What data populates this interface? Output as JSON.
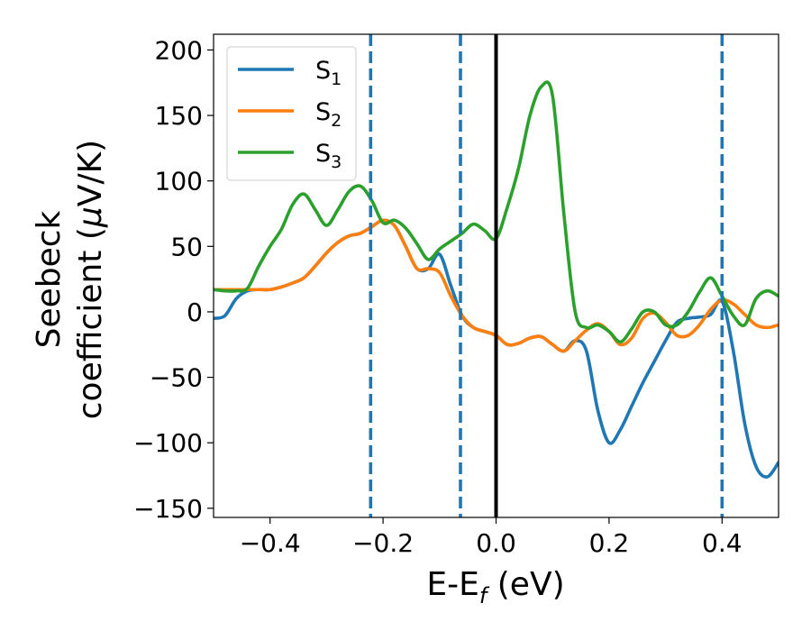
{
  "chart_data": {
    "type": "line",
    "xlabel": "E-E",
    "xlabel_sub": "f",
    "xlabel_suffix": " (eV)",
    "ylabel_line1": "Seebeck",
    "ylabel_line2": "coefficient  (",
    "ylabel_mu": "μ",
    "ylabel_line2_end": "V/K)",
    "xlim": [
      -0.5,
      0.5
    ],
    "ylim": [
      -157,
      212
    ],
    "xticks": [
      -0.4,
      -0.2,
      0.0,
      0.2,
      0.4
    ],
    "xtick_labels": [
      "−0.4",
      "−0.2",
      "0.0",
      "0.2",
      "0.4"
    ],
    "yticks": [
      -150,
      -100,
      -50,
      0,
      50,
      100,
      150,
      200
    ],
    "ytick_labels": [
      "−150",
      "−100",
      "−50",
      "0",
      "50",
      "100",
      "150",
      "200"
    ],
    "grid": false,
    "legend_position": "top-left",
    "vlines": [
      {
        "x": -0.222,
        "style": "dashed",
        "color": "#1f77b4"
      },
      {
        "x": -0.063,
        "style": "dashed",
        "color": "#1f77b4"
      },
      {
        "x": 0.0,
        "style": "solid",
        "color": "#000000"
      },
      {
        "x": 0.4,
        "style": "dashed",
        "color": "#1f77b4"
      }
    ],
    "series": [
      {
        "name": "S",
        "sub": "1",
        "color": "#1f77b4",
        "x": [
          -0.5,
          -0.48,
          -0.46,
          -0.44,
          -0.42,
          -0.4,
          -0.38,
          -0.36,
          -0.34,
          -0.32,
          -0.3,
          -0.28,
          -0.26,
          -0.24,
          -0.22,
          -0.2,
          -0.18,
          -0.16,
          -0.14,
          -0.12,
          -0.1,
          -0.08,
          -0.06,
          -0.04,
          -0.02,
          0.0,
          0.02,
          0.04,
          0.06,
          0.08,
          0.1,
          0.12,
          0.14,
          0.16,
          0.18,
          0.2,
          0.22,
          0.24,
          0.26,
          0.28,
          0.3,
          0.32,
          0.34,
          0.36,
          0.38,
          0.4,
          0.42,
          0.44,
          0.46,
          0.48,
          0.5
        ],
        "y": [
          -5,
          -3,
          10,
          16,
          17,
          17,
          19,
          22,
          26,
          35,
          45,
          53,
          58,
          60,
          65,
          70,
          66,
          50,
          33,
          33,
          44,
          20,
          -3,
          -12,
          -15,
          -18,
          -25,
          -24,
          -20,
          -19,
          -25,
          -30,
          -22,
          -30,
          -75,
          -100,
          -90,
          -72,
          -54,
          -38,
          -22,
          -8,
          -5,
          -4,
          -2,
          8,
          -30,
          -85,
          -118,
          -126,
          -115
        ]
      },
      {
        "name": "S",
        "sub": "2",
        "color": "#ff7f0e",
        "x": [
          -0.5,
          -0.48,
          -0.46,
          -0.44,
          -0.42,
          -0.4,
          -0.38,
          -0.36,
          -0.34,
          -0.32,
          -0.3,
          -0.28,
          -0.26,
          -0.24,
          -0.22,
          -0.2,
          -0.18,
          -0.16,
          -0.14,
          -0.12,
          -0.1,
          -0.08,
          -0.06,
          -0.04,
          -0.02,
          0.0,
          0.02,
          0.04,
          0.06,
          0.08,
          0.1,
          0.12,
          0.14,
          0.16,
          0.18,
          0.2,
          0.22,
          0.24,
          0.26,
          0.28,
          0.3,
          0.32,
          0.34,
          0.36,
          0.38,
          0.4,
          0.42,
          0.44,
          0.46,
          0.48,
          0.5
        ],
        "y": [
          17,
          17,
          17,
          17,
          17,
          17,
          19,
          22,
          26,
          35,
          45,
          53,
          58,
          60,
          65,
          70,
          66,
          50,
          33,
          33,
          30,
          12,
          -3,
          -12,
          -15,
          -18,
          -25,
          -24,
          -20,
          -19,
          -25,
          -30,
          -22,
          -14,
          -9,
          -15,
          -25,
          -20,
          -5,
          -1,
          -8,
          -18,
          -18,
          -10,
          2,
          9,
          6,
          -2,
          -10,
          -12,
          -10
        ]
      },
      {
        "name": "S",
        "sub": "3",
        "color": "#2ca02c",
        "x": [
          -0.5,
          -0.48,
          -0.46,
          -0.44,
          -0.42,
          -0.4,
          -0.38,
          -0.36,
          -0.34,
          -0.32,
          -0.3,
          -0.28,
          -0.26,
          -0.24,
          -0.22,
          -0.2,
          -0.18,
          -0.16,
          -0.14,
          -0.12,
          -0.1,
          -0.08,
          -0.06,
          -0.04,
          -0.02,
          0.0,
          0.02,
          0.04,
          0.06,
          0.08,
          0.1,
          0.12,
          0.14,
          0.16,
          0.18,
          0.2,
          0.22,
          0.24,
          0.26,
          0.28,
          0.3,
          0.32,
          0.34,
          0.36,
          0.38,
          0.4,
          0.42,
          0.44,
          0.46,
          0.48,
          0.5
        ],
        "y": [
          17,
          16,
          16,
          18,
          35,
          50,
          63,
          82,
          90,
          78,
          66,
          78,
          92,
          96,
          85,
          68,
          70,
          64,
          52,
          40,
          48,
          54,
          60,
          67,
          62,
          56,
          80,
          110,
          150,
          172,
          165,
          75,
          0,
          -12,
          -10,
          -15,
          -23,
          -13,
          0,
          0,
          -10,
          -10,
          0,
          15,
          26,
          12,
          -3,
          -10,
          10,
          16,
          12
        ]
      }
    ]
  }
}
